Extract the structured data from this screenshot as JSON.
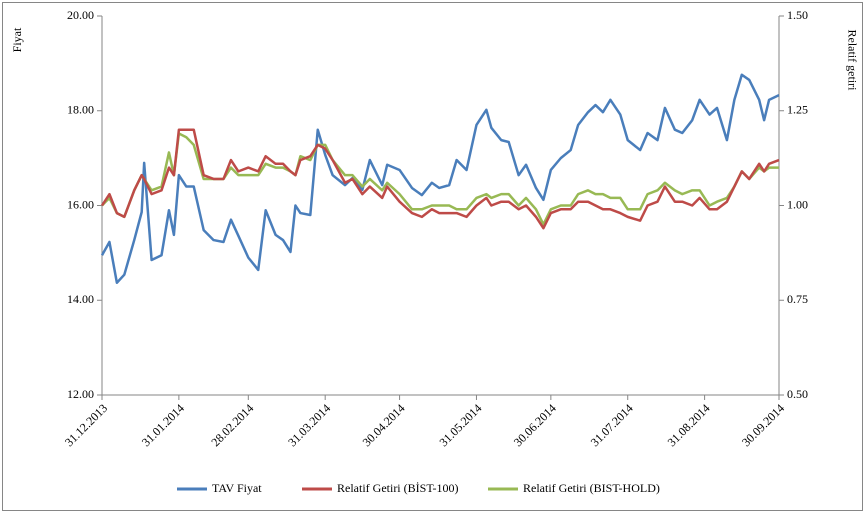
{
  "chart_data": {
    "type": "line",
    "y_label": "Fiyat",
    "y2_label": "Relatif getiri",
    "x": [
      "31.12.2013",
      "03.01.2014",
      "06.01.2014",
      "09.01.2014",
      "13.01.2014",
      "16.01.2014",
      "17.01.2014",
      "20.01.2014",
      "24.01.2014",
      "27.01.2014",
      "29.01.2014",
      "31.01.2014",
      "03.02.2014",
      "06.02.2014",
      "10.02.2014",
      "14.02.2014",
      "18.02.2014",
      "21.02.2014",
      "24.02.2014",
      "28.02.2014",
      "04.03.2014",
      "07.03.2014",
      "11.03.2014",
      "14.03.2014",
      "17.03.2014",
      "19.03.2014",
      "21.03.2014",
      "25.03.2014",
      "28.03.2014",
      "31.03.2014",
      "03.04.2014",
      "08.04.2014",
      "11.04.2014",
      "15.04.2014",
      "18.04.2014",
      "23.04.2014",
      "25.04.2014",
      "30.04.2014",
      "05.05.2014",
      "09.05.2014",
      "13.05.2014",
      "16.05.2014",
      "20.05.2014",
      "23.05.2014",
      "27.05.2014",
      "31.05.2014",
      "04.06.2014",
      "06.06.2014",
      "10.06.2014",
      "13.06.2014",
      "17.06.2014",
      "20.06.2014",
      "24.06.2014",
      "27.06.2014",
      "30.06.2014",
      "04.07.2014",
      "08.07.2014",
      "11.07.2014",
      "15.07.2014",
      "18.07.2014",
      "21.07.2014",
      "24.07.2014",
      "28.07.2014",
      "31.07.2014",
      "05.08.2014",
      "08.08.2014",
      "12.08.2014",
      "15.08.2014",
      "19.08.2014",
      "22.08.2014",
      "26.08.2014",
      "29.08.2014",
      "02.09.2014",
      "05.09.2014",
      "09.09.2014",
      "12.09.2014",
      "15.09.2014",
      "18.09.2014",
      "22.09.2014",
      "24.09.2014",
      "26.09.2014",
      "30.09.2014"
    ],
    "series": [
      {
        "name": "TAV Fiyat",
        "color": "#4a7ebb",
        "axis": "y",
        "values": [
          14.95,
          15.23,
          14.37,
          14.54,
          15.27,
          15.86,
          16.9,
          14.85,
          14.95,
          15.9,
          15.38,
          16.64,
          16.4,
          16.4,
          15.48,
          15.27,
          15.23,
          15.7,
          15.36,
          14.9,
          14.64,
          15.9,
          15.38,
          15.27,
          15.02,
          16.0,
          15.84,
          15.8,
          17.6,
          17.07,
          16.64,
          16.43,
          16.58,
          16.33,
          16.96,
          16.43,
          16.86,
          16.75,
          16.37,
          16.22,
          16.48,
          16.37,
          16.43,
          16.96,
          16.75,
          17.7,
          18.02,
          17.64,
          17.38,
          17.34,
          16.64,
          16.86,
          16.37,
          16.12,
          16.75,
          17.0,
          17.17,
          17.7,
          17.97,
          18.12,
          17.97,
          18.23,
          17.92,
          17.38,
          17.17,
          17.53,
          17.38,
          18.06,
          17.6,
          17.53,
          17.8,
          18.23,
          17.92,
          18.06,
          17.38,
          18.23,
          18.76,
          18.65,
          18.23,
          17.8,
          18.23,
          18.33
        ]
      },
      {
        "name": "Relatif Getiri (BİST-100)",
        "color": "#be4b48",
        "axis": "y2",
        "values": [
          1.0,
          1.03,
          0.98,
          0.97,
          1.04,
          1.08,
          1.07,
          1.03,
          1.04,
          1.1,
          1.08,
          1.2,
          1.2,
          1.2,
          1.08,
          1.07,
          1.07,
          1.12,
          1.09,
          1.1,
          1.09,
          1.13,
          1.11,
          1.11,
          1.09,
          1.08,
          1.12,
          1.13,
          1.16,
          1.15,
          1.12,
          1.06,
          1.07,
          1.03,
          1.05,
          1.02,
          1.05,
          1.01,
          0.98,
          0.97,
          0.99,
          0.98,
          0.98,
          0.98,
          0.97,
          1.0,
          1.02,
          1.0,
          1.01,
          1.01,
          0.99,
          1.0,
          0.97,
          0.94,
          0.98,
          0.99,
          0.99,
          1.01,
          1.01,
          1.0,
          0.99,
          0.99,
          0.98,
          0.97,
          0.96,
          1.0,
          1.01,
          1.05,
          1.01,
          1.01,
          1.0,
          1.02,
          0.99,
          0.99,
          1.01,
          1.05,
          1.09,
          1.07,
          1.11,
          1.09,
          1.11,
          1.12
        ]
      },
      {
        "name": "Relatif Getiri (BIST-HOLD)",
        "color": "#98b954",
        "axis": "y2",
        "values": [
          1.0,
          1.02,
          0.98,
          0.97,
          1.04,
          1.08,
          1.07,
          1.04,
          1.05,
          1.14,
          1.08,
          1.19,
          1.18,
          1.16,
          1.07,
          1.07,
          1.07,
          1.1,
          1.08,
          1.08,
          1.08,
          1.11,
          1.1,
          1.1,
          1.09,
          1.08,
          1.13,
          1.12,
          1.16,
          1.16,
          1.12,
          1.08,
          1.08,
          1.05,
          1.07,
          1.04,
          1.06,
          1.03,
          0.99,
          0.99,
          1.0,
          1.0,
          1.0,
          0.99,
          0.99,
          1.02,
          1.03,
          1.02,
          1.03,
          1.03,
          1.0,
          1.02,
          0.99,
          0.95,
          0.99,
          1.0,
          1.0,
          1.03,
          1.04,
          1.03,
          1.03,
          1.02,
          1.02,
          0.99,
          0.99,
          1.03,
          1.04,
          1.06,
          1.04,
          1.03,
          1.04,
          1.04,
          1.0,
          1.01,
          1.02,
          1.05,
          1.09,
          1.07,
          1.1,
          1.09,
          1.1,
          1.1
        ]
      }
    ],
    "xlim": [
      "31.12.2013",
      "30.09.2014"
    ],
    "xticks": [
      "31.12.2013",
      "31.01.2014",
      "28.02.2014",
      "31.03.2014",
      "30.04.2014",
      "31.05.2014",
      "30.06.2014",
      "31.07.2014",
      "31.08.2014",
      "30.09.2014"
    ],
    "ylim": [
      12,
      20
    ],
    "yticks": [
      {
        "value": 12,
        "label": "12.00"
      },
      {
        "value": 14,
        "label": "14.00"
      },
      {
        "value": 16,
        "label": "16.00"
      },
      {
        "value": 18,
        "label": "18.00"
      },
      {
        "value": 20,
        "label": "20.00"
      }
    ],
    "y2lim": [
      0.5,
      1.5
    ],
    "y2ticks": [
      {
        "value": 0.5,
        "label": "0.50"
      },
      {
        "value": 0.75,
        "label": "0.75"
      },
      {
        "value": 1.0,
        "label": "1.00"
      },
      {
        "value": 1.25,
        "label": "1.25"
      },
      {
        "value": 1.5,
        "label": "1.50"
      }
    ],
    "grid": false,
    "legend": "bottom"
  }
}
